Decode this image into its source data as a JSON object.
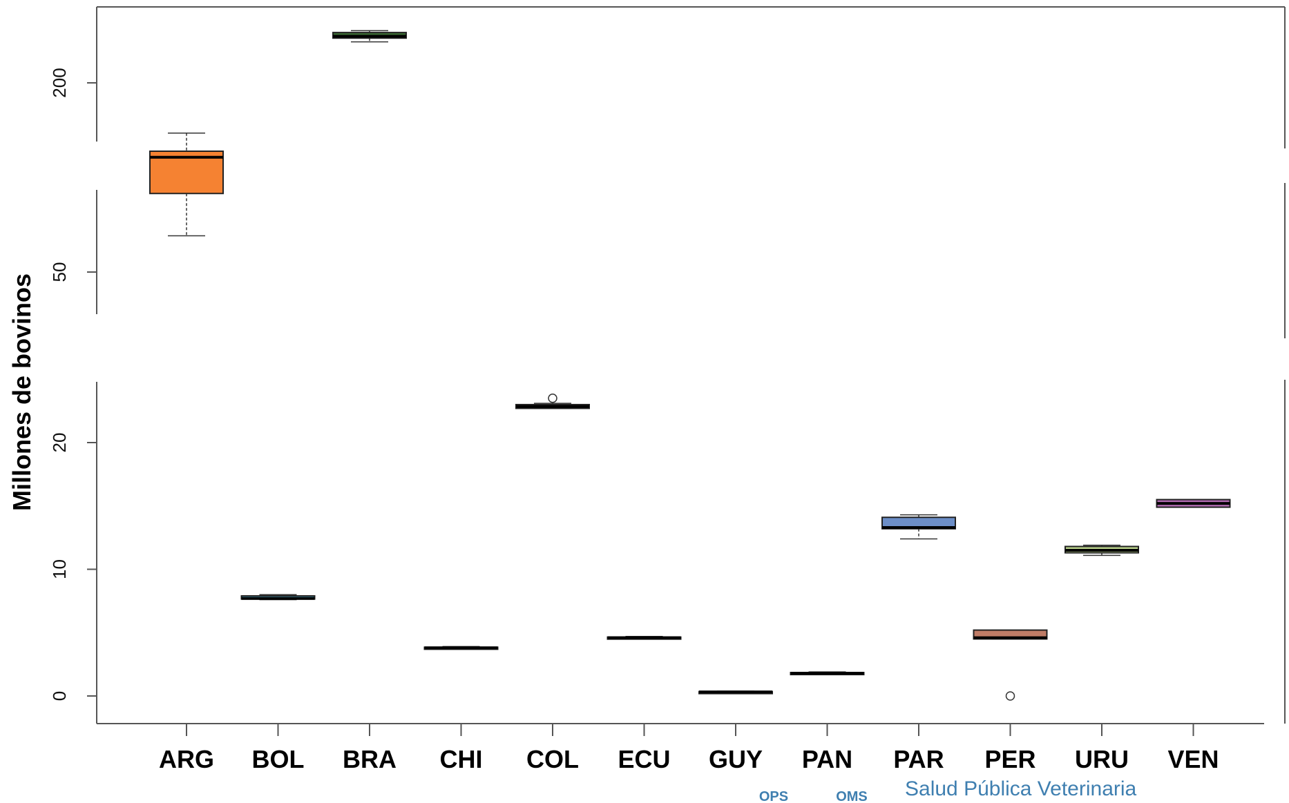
{
  "chart_data": {
    "type": "boxplot",
    "ylabel": "Millones de bovinos",
    "y_ticks": [
      0,
      10,
      20,
      50,
      200
    ],
    "y_axis_breaks": "broken axis with three segments: 0-24, 45-62, 180-225",
    "categories": [
      "ARG",
      "BOL",
      "BRA",
      "CHI",
      "COL",
      "ECU",
      "GUY",
      "PAN",
      "PAR",
      "PER",
      "URU",
      "VEN"
    ],
    "boxes": [
      {
        "category": "ARG",
        "color": "#f58232",
        "whisker_low": 53,
        "q1": 56.5,
        "median": 59.5,
        "q3": 60,
        "whisker_high": 61.5,
        "outliers": []
      },
      {
        "category": "BOL",
        "color": "#3f8ea8",
        "whisker_low": 7.6,
        "q1": 7.65,
        "median": 7.7,
        "q3": 7.9,
        "whisker_high": 8.0,
        "outliers": []
      },
      {
        "category": "BRA",
        "color": "#3b6b35",
        "whisker_low": 211,
        "q1": 212,
        "median": 212.5,
        "q3": 213.5,
        "whisker_high": 214,
        "outliers": []
      },
      {
        "category": "CHI",
        "color": "#5a4a6a",
        "whisker_low": 3.7,
        "q1": 3.75,
        "median": 3.8,
        "q3": 3.85,
        "whisker_high": 3.9,
        "outliers": []
      },
      {
        "category": "COL",
        "color": "#a03030",
        "whisker_low": 22.7,
        "q1": 22.7,
        "median": 22.85,
        "q3": 23.0,
        "whisker_high": 23.1,
        "outliers": [
          23.5
        ]
      },
      {
        "category": "ECU",
        "color": "#2f4f6f",
        "whisker_low": 4.5,
        "q1": 4.55,
        "median": 4.6,
        "q3": 4.65,
        "whisker_high": 4.7,
        "outliers": []
      },
      {
        "category": "GUY",
        "color": "#2f4f6f",
        "whisker_low": 0.3,
        "q1": 0.3,
        "median": 0.32,
        "q3": 0.35,
        "whisker_high": 0.38,
        "outliers": []
      },
      {
        "category": "PAN",
        "color": "#2f4f6f",
        "whisker_low": 1.7,
        "q1": 1.75,
        "median": 1.8,
        "q3": 1.85,
        "whisker_high": 1.9,
        "outliers": []
      },
      {
        "category": "PAR",
        "color": "#6c8ec7",
        "whisker_low": 12.4,
        "q1": 13.2,
        "median": 13.3,
        "q3": 14.1,
        "whisker_high": 14.3,
        "outliers": []
      },
      {
        "category": "PER",
        "color": "#c07c66",
        "whisker_low": 4.5,
        "q1": 4.5,
        "median": 4.6,
        "q3": 5.2,
        "whisker_high": 5.2,
        "outliers": [
          0.0
        ]
      },
      {
        "category": "URU",
        "color": "#b8d08a",
        "whisker_low": 11.1,
        "q1": 11.3,
        "median": 11.5,
        "q3": 11.8,
        "whisker_high": 11.9,
        "outliers": []
      },
      {
        "category": "VEN",
        "color": "#b06ab0",
        "whisker_low": 14.9,
        "q1": 14.9,
        "median": 15.2,
        "q3": 15.5,
        "whisker_high": 15.5,
        "outliers": []
      }
    ]
  },
  "footer": {
    "ops": "OPS",
    "oms": "OMS",
    "text": "Salud Pública Veterinaria"
  }
}
